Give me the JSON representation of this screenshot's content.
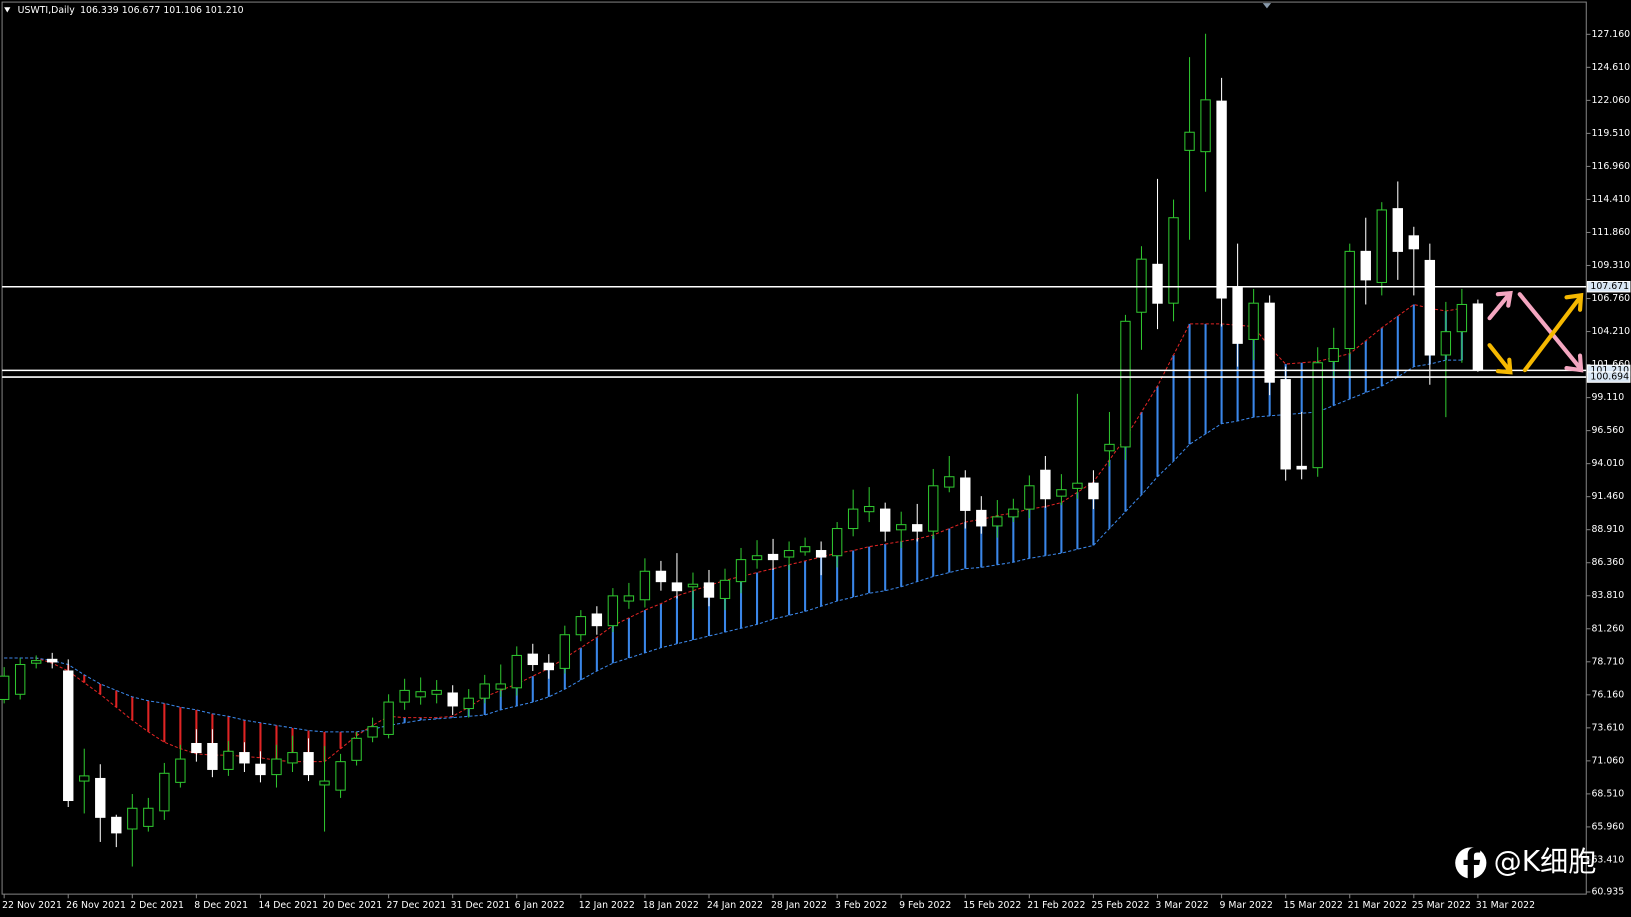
{
  "chart_data": {
    "type": "candlestick",
    "title": "USWTI,Daily",
    "info": "106.339 106.677 101.106 101.210",
    "categories": [
      "22 Nov 2021",
      null,
      null,
      null,
      "26 Nov 2021",
      null,
      null,
      null,
      "2 Dec 2021",
      null,
      null,
      null,
      "8 Dec 2021",
      null,
      null,
      null,
      "14 Dec 2021",
      null,
      null,
      null,
      "20 Dec 2021",
      null,
      null,
      null,
      "27 Dec 2021",
      null,
      null,
      null,
      "31 Dec 2021",
      null,
      null,
      null,
      "6 Jan 2022",
      null,
      null,
      null,
      "12 Jan 2022",
      null,
      null,
      null,
      "18 Jan 2022",
      null,
      null,
      null,
      "24 Jan 2022",
      null,
      null,
      null,
      "28 Jan 2022",
      null,
      null,
      null,
      "3 Feb 2022",
      null,
      null,
      null,
      "9 Feb 2022",
      null,
      null,
      null,
      "15 Feb 2022",
      null,
      null,
      null,
      "21 Feb 2022",
      null,
      null,
      null,
      "25 Feb 2022",
      null,
      null,
      null,
      "3 Mar 2022",
      null,
      null,
      null,
      "9 Mar 2022",
      null,
      null,
      null,
      "15 Mar 2022",
      null,
      null,
      null,
      "21 Mar 2022",
      null,
      null,
      null,
      "25 Mar 2022",
      null,
      null,
      null,
      "31 Mar 2022"
    ],
    "open": [
      75.8,
      76.2,
      78.6,
      78.9,
      78.0,
      69.5,
      69.7,
      66.7,
      65.8,
      66.0,
      67.2,
      69.4,
      72.4,
      72.4,
      70.4,
      71.7,
      70.8,
      70.0,
      70.9,
      71.7,
      69.2,
      68.8,
      71.1,
      72.9,
      73.1,
      75.6,
      76.0,
      76.2,
      76.3,
      75.1,
      75.9,
      76.6,
      76.7,
      79.3,
      78.6,
      78.2,
      80.8,
      82.4,
      81.5,
      83.4,
      83.5,
      85.7,
      84.8,
      84.5,
      84.8,
      83.6,
      84.9,
      86.6,
      87.0,
      86.8,
      87.2,
      87.3,
      86.9,
      89.0,
      90.3,
      90.5,
      88.9,
      89.3,
      88.8,
      92.2,
      92.9,
      90.4,
      89.2,
      89.9,
      90.5,
      93.5,
      91.5,
      92.1,
      92.5,
      95.0,
      95.3,
      105.7,
      109.4,
      106.4,
      118.2,
      118.1,
      122.0,
      107.6,
      103.6,
      106.4,
      100.5,
      93.8,
      93.7,
      101.9,
      102.9,
      110.4,
      108.0,
      113.7,
      111.6,
      109.7,
      102.4,
      104.2,
      106.339
    ],
    "high": [
      78.3,
      79.0,
      79.2,
      79.4,
      78.9,
      72.0,
      70.8,
      66.9,
      68.5,
      68.2,
      70.9,
      72.3,
      73.5,
      73.5,
      72.6,
      72.5,
      71.8,
      72.3,
      73.0,
      72.8,
      72.2,
      71.6,
      73.3,
      74.4,
      76.2,
      77.4,
      77.5,
      77.3,
      76.9,
      76.6,
      77.7,
      78.5,
      79.9,
      80.1,
      79.3,
      81.5,
      82.7,
      83.0,
      84.4,
      84.8,
      86.7,
      86.5,
      87.1,
      85.6,
      85.8,
      85.9,
      87.5,
      88.1,
      88.2,
      88.0,
      88.3,
      88.0,
      89.5,
      92.0,
      92.2,
      91.0,
      90.3,
      90.9,
      93.6,
      94.6,
      93.5,
      91.5,
      91.2,
      91.3,
      93.1,
      94.6,
      93.2,
      99.4,
      93.5,
      98.0,
      105.5,
      110.8,
      116.0,
      114.4,
      125.4,
      127.2,
      123.8,
      111.0,
      107.5,
      107.0,
      101.5,
      98.0,
      103.0,
      104.5,
      111.0,
      113.0,
      114.2,
      115.8,
      112.3,
      111.0,
      106.5,
      107.5,
      106.677
    ],
    "low": [
      75.5,
      75.8,
      78.2,
      78.2,
      67.5,
      67.0,
      64.8,
      64.4,
      62.9,
      65.6,
      66.5,
      69.0,
      71.0,
      69.8,
      69.9,
      70.2,
      69.4,
      69.0,
      70.2,
      69.5,
      65.6,
      68.2,
      70.7,
      72.5,
      72.8,
      75.0,
      75.4,
      75.5,
      74.6,
      74.4,
      75.5,
      76.0,
      76.1,
      78.0,
      77.4,
      77.8,
      80.3,
      80.8,
      81.0,
      82.8,
      82.9,
      84.2,
      83.6,
      82.8,
      83.0,
      82.7,
      84.0,
      85.9,
      85.8,
      85.8,
      86.9,
      85.4,
      86.0,
      88.4,
      89.5,
      88.0,
      87.5,
      88.0,
      88.2,
      91.8,
      89.0,
      88.6,
      88.3,
      89.5,
      89.8,
      90.6,
      90.8,
      91.3,
      90.5,
      93.8,
      94.3,
      102.8,
      104.4,
      105.0,
      111.3,
      115.0,
      104.6,
      101.5,
      102.0,
      99.3,
      92.7,
      92.8,
      93.0,
      100.6,
      100.8,
      106.3,
      107.0,
      108.2,
      107.0,
      100.1,
      97.6,
      101.8,
      101.106
    ],
    "close": [
      77.6,
      78.5,
      78.8,
      78.7,
      68.0,
      69.9,
      66.7,
      65.5,
      67.4,
      67.4,
      70.1,
      71.2,
      71.7,
      70.4,
      71.8,
      70.9,
      70.0,
      71.2,
      71.7,
      70.0,
      69.5,
      71.0,
      72.8,
      73.7,
      75.6,
      76.5,
      76.4,
      76.5,
      75.3,
      75.9,
      77.0,
      77.0,
      79.2,
      78.5,
      78.1,
      80.8,
      82.2,
      81.5,
      83.8,
      83.8,
      85.7,
      84.9,
      84.2,
      84.7,
      83.7,
      85.0,
      86.6,
      86.9,
      86.6,
      87.3,
      87.6,
      86.8,
      89.0,
      90.5,
      90.7,
      88.8,
      89.3,
      88.8,
      92.3,
      93.0,
      90.4,
      89.2,
      89.9,
      90.5,
      92.3,
      91.3,
      92.0,
      92.5,
      91.3,
      95.5,
      105.0,
      109.8,
      106.4,
      113.0,
      119.6,
      122.1,
      106.8,
      103.3,
      106.4,
      100.3,
      93.6,
      93.6,
      101.8,
      102.9,
      110.4,
      108.2,
      113.6,
      110.4,
      110.6,
      102.4,
      104.2,
      106.3,
      101.21
    ],
    "bull_color": "#2fc42f",
    "bear_color": "#ffffff",
    "span_a": {
      "color": "#e02424",
      "values": [
        79.0,
        79.0,
        79.0,
        78.6,
        78.0,
        77.1,
        76.2,
        75.2,
        74.2,
        73.3,
        72.5,
        72.0,
        71.6,
        71.5,
        71.5,
        71.4,
        71.3,
        71.1,
        71.0,
        71.0,
        71.0,
        72.0,
        73.0,
        73.8,
        74.5,
        74.4,
        74.4,
        74.4,
        74.5,
        75.2,
        76.0,
        76.5,
        77.0,
        77.6,
        78.2,
        79.0,
        79.8,
        80.6,
        81.5,
        82.1,
        82.7,
        83.2,
        83.8,
        84.2,
        84.6,
        85.0,
        85.3,
        85.6,
        85.9,
        86.2,
        86.5,
        86.8,
        87.1,
        87.3,
        87.6,
        87.8,
        88.0,
        88.2,
        88.5,
        89.0,
        89.5,
        89.7,
        90.0,
        90.2,
        90.5,
        90.7,
        91.0,
        91.8,
        92.6,
        94.3,
        96.0,
        98.0,
        100.0,
        102.4,
        104.8,
        104.8,
        104.8,
        104.7,
        104.6,
        103.0,
        101.7,
        101.8,
        101.9,
        102.2,
        102.5,
        103.5,
        104.5,
        105.4,
        106.3,
        106.0,
        105.8,
        106.0,
        null
      ]
    },
    "span_b": {
      "color": "#3a86e8",
      "values": [
        79.0,
        79.0,
        79.0,
        78.8,
        78.5,
        77.7,
        77.0,
        76.5,
        76.0,
        75.7,
        75.5,
        75.2,
        75.0,
        74.7,
        74.5,
        74.2,
        74.0,
        73.8,
        73.6,
        73.4,
        73.3,
        73.3,
        73.3,
        73.5,
        73.8,
        74.0,
        74.2,
        74.3,
        74.4,
        74.5,
        74.6,
        75.0,
        75.3,
        75.6,
        76.0,
        76.6,
        77.3,
        78.0,
        78.6,
        79.0,
        79.4,
        79.8,
        80.1,
        80.4,
        80.7,
        81.0,
        81.3,
        81.6,
        82.0,
        82.3,
        82.6,
        83.0,
        83.4,
        83.7,
        84.0,
        84.2,
        84.5,
        84.9,
        85.3,
        85.6,
        85.9,
        86.0,
        86.2,
        86.4,
        86.7,
        86.9,
        87.1,
        87.4,
        87.7,
        89.0,
        90.3,
        91.6,
        93.0,
        94.2,
        95.5,
        96.3,
        97.1,
        97.3,
        97.6,
        97.7,
        97.8,
        97.9,
        98.0,
        98.5,
        99.0,
        99.5,
        100.0,
        100.7,
        101.5,
        101.7,
        102.0,
        102.0,
        null
      ]
    },
    "hlines": [
      {
        "value": 107.671,
        "label": "107.671"
      },
      {
        "value": 101.21,
        "label": "101.210"
      },
      {
        "value": 100.694,
        "label": "100.694"
      }
    ],
    "ylim": [
      60.77,
      129.65
    ],
    "yticks": [
      {
        "value": 127.16,
        "label": "127.160"
      },
      {
        "value": 124.61,
        "label": "124.610"
      },
      {
        "value": 122.06,
        "label": "122.060"
      },
      {
        "value": 119.51,
        "label": "119.510"
      },
      {
        "value": 116.96,
        "label": "116.960"
      },
      {
        "value": 114.41,
        "label": "114.410"
      },
      {
        "value": 111.86,
        "label": "111.860"
      },
      {
        "value": 109.31,
        "label": "109.310"
      },
      {
        "value": 106.76,
        "label": "106.760"
      },
      {
        "value": 104.21,
        "label": "104.210"
      },
      {
        "value": 101.66,
        "label": "101.660"
      },
      {
        "value": 99.11,
        "label": "99.110"
      },
      {
        "value": 96.56,
        "label": "96.560"
      },
      {
        "value": 94.01,
        "label": "94.010"
      },
      {
        "value": 91.46,
        "label": "91.460"
      },
      {
        "value": 88.91,
        "label": "88.910"
      },
      {
        "value": 86.36,
        "label": "86.360"
      },
      {
        "value": 83.81,
        "label": "83.810"
      },
      {
        "value": 81.26,
        "label": "81.260"
      },
      {
        "value": 78.71,
        "label": "78.710"
      },
      {
        "value": 76.16,
        "label": "76.160"
      },
      {
        "value": 73.61,
        "label": "73.610"
      },
      {
        "value": 71.06,
        "label": "71.060"
      },
      {
        "value": 68.51,
        "label": "68.510"
      },
      {
        "value": 65.96,
        "label": "65.960"
      },
      {
        "value": 63.41,
        "label": "63.410"
      },
      {
        "value": 60.935,
        "label": "60.935"
      }
    ],
    "grid": false,
    "watermark": "@K细胞"
  }
}
